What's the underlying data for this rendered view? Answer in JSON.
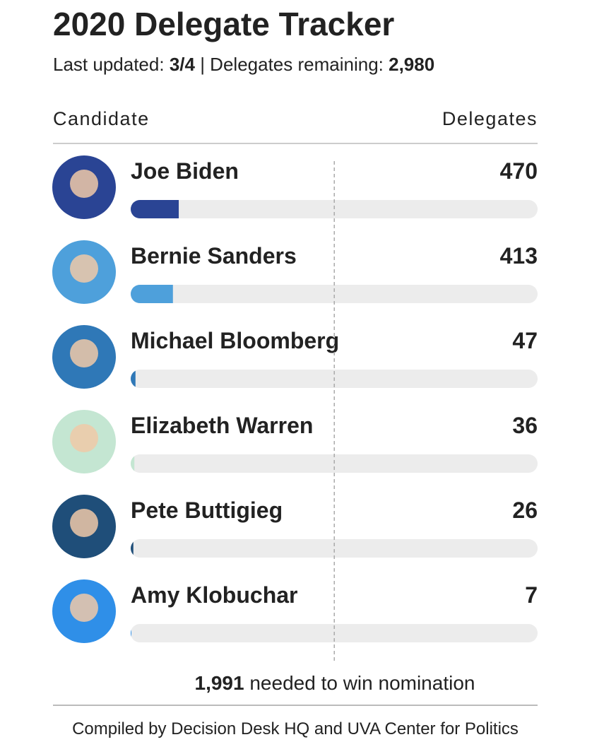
{
  "chart_data": {
    "type": "bar",
    "orientation": "horizontal",
    "title": "2020 Delegate Tracker",
    "subtitle": {
      "updated_label": "Last updated:",
      "updated": "3/4",
      "remaining_label": "| Delegates remaining:",
      "remaining": {
        "value": 2980,
        "label": "2,980"
      }
    },
    "column_headers": [
      "Candidate",
      "Delegates"
    ],
    "categories": [
      "Joe Biden",
      "Bernie Sanders",
      "Michael Bloomberg",
      "Elizabeth Warren",
      "Pete Buttigieg",
      "Amy Klobuchar"
    ],
    "values": [
      470,
      413,
      47,
      36,
      26,
      7
    ],
    "colors": [
      "#2a4494",
      "#4ea0db",
      "#2f78b7",
      "#c4e6d2",
      "#1f4e79",
      "#2f8fe8"
    ],
    "xlim": [
      0,
      3979
    ],
    "threshold": {
      "value": 1991,
      "label": "1,991"
    },
    "threshold_text": "needed to win nomination",
    "source": "Compiled by Decision Desk HQ and UVA Center for Politics"
  }
}
